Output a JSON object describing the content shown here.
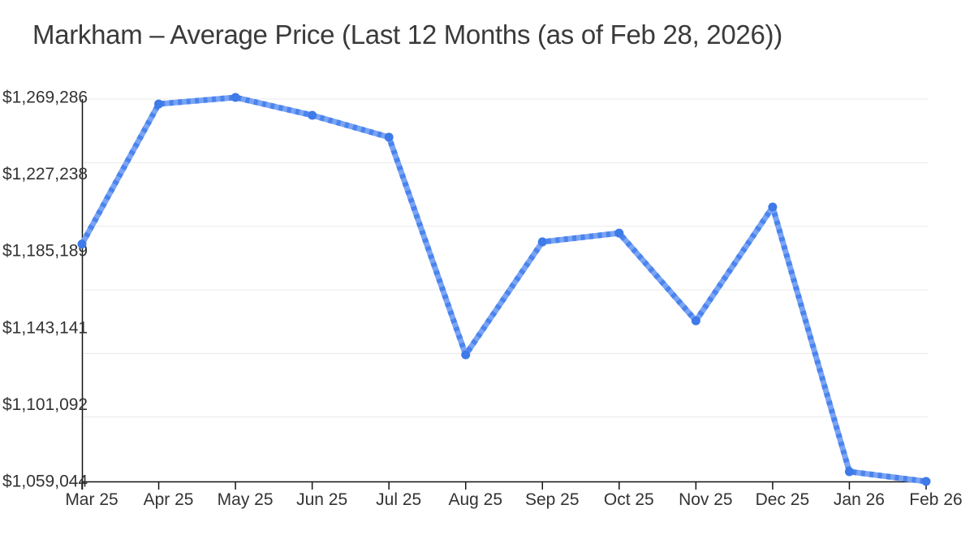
{
  "title": "Markham – Average Price (Last 12 Months (as of Feb 28, 2026))",
  "chart_data": {
    "type": "line",
    "title": "Markham – Average Price (Last 12 Months (as of Feb 28, 2026))",
    "categories": [
      "Mar 25",
      "Apr 25",
      "May 25",
      "Jun 25",
      "Jul 25",
      "Aug 25",
      "Sep 25",
      "Oct 25",
      "Nov 25",
      "Dec 25",
      "Jan 26",
      "Feb 26"
    ],
    "series": [
      {
        "name": "Average Price",
        "values": [
          1189000,
          1265700,
          1269286,
          1259500,
          1247500,
          1128400,
          1190200,
          1195000,
          1147000,
          1209300,
          1064400,
          1059044
        ]
      }
    ],
    "xlabel": "",
    "ylabel": "",
    "ylim": [
      1059044,
      1269286
    ],
    "yticks": [
      {
        "value": 1269286,
        "label": "$1,269,286"
      },
      {
        "value": 1227238,
        "label": "$1,227,238"
      },
      {
        "value": 1185189,
        "label": "$1,185,189"
      },
      {
        "value": 1143141,
        "label": "$1,143,141"
      },
      {
        "value": 1101092,
        "label": "$1,101,092"
      },
      {
        "value": 1059044,
        "label": "$1,059,044"
      }
    ],
    "grid": "horizontal",
    "legend": false,
    "colors": {
      "line": "#7aa4f3",
      "line_dash": "#4a84ee",
      "marker": "#3e7ae8",
      "grid": "#e9e9e9",
      "axis": "#141414",
      "tick_text": "#333333",
      "title_text": "#3a3a3a",
      "background": "#ffffff"
    }
  }
}
